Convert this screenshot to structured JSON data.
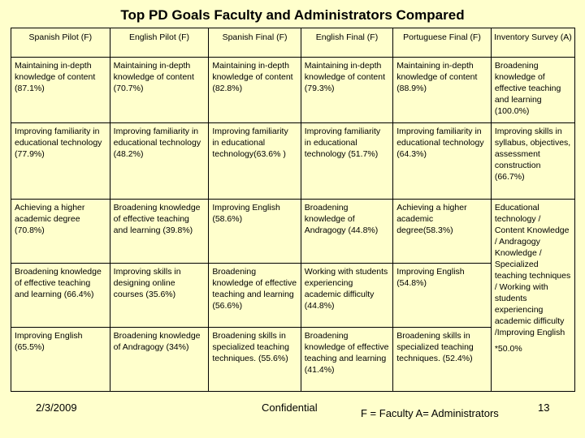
{
  "title": "Top PD Goals Faculty and Administrators Compared",
  "headers": [
    "Spanish Pilot (F)",
    "English Pilot (F)",
    "Spanish Final (F)",
    "English Final (F)",
    "Portuguese Final (F)",
    "Inventory Survey (A)"
  ],
  "rows": [
    [
      "Maintaining in-depth knowledge of content (87.1%)",
      "Maintaining in-depth knowledge of content (70.7%)",
      "Maintaining in-depth knowledge of content (82.8%)",
      "Maintaining in-depth knowledge of content (79.3%)",
      "Maintaining in-depth knowledge of content (88.9%)",
      "Broadening knowledge of effective teaching and learning (100.0%)"
    ],
    [
      "Improving familiarity in educational technology (77.9%)",
      "Improving familiarity in educational technology (48.2%)",
      "Improving familiarity in educational technology(63.6% )",
      "Improving familiarity in educational technology (51.7%)",
      "Improving familiarity in educational technology (64.3%)",
      "Improving skills in syllabus, objectives, assessment construction (66.7%)"
    ],
    [
      "Achieving a higher academic degree (70.8%)",
      "Broadening knowledge of effective teaching and learning (39.8%)",
      "Improving English (58.6%)",
      "Broadening knowledge of Andragogy (44.8%)",
      "Achieving a higher academic degree(58.3%)"
    ],
    [
      "Broadening knowledge of effective teaching and learning (66.4%)",
      "Improving skills in designing online courses (35.6%)",
      "Broadening knowledge of effective teaching and learning (56.6%)",
      "Working with students experiencing academic difficulty (44.8%)",
      "Improving English (54.8%)"
    ],
    [
      "Improving English (65.5%)",
      "Broadening knowledge of Andragogy (34%)",
      "Broadening skills in specialized teaching techniques. (55.6%)",
      "Broadening knowledge of effective teaching and learning (41.4%)",
      "Broadening skills in specialized teaching techniques. (52.4%)"
    ]
  ],
  "merged_cell": {
    "text": "Educational technology / Content Knowledge / Andragogy Knowledge / Specialized teaching techniques / Working with students experiencing academic difficulty /Improving English",
    "note": "*50.0%"
  },
  "footer": {
    "date": "2/3/2009",
    "confidential": "Confidential",
    "legend": "F = Faculty A= Administrators",
    "page": "13"
  }
}
